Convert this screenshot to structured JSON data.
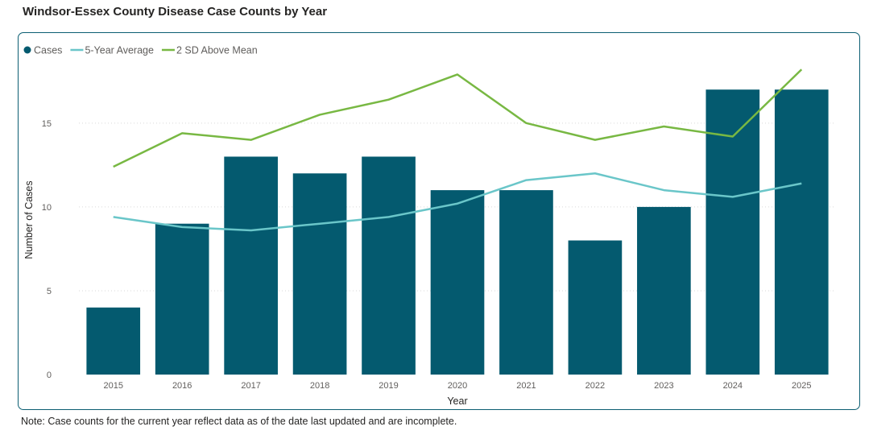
{
  "title": "Windsor-Essex County Disease Case Counts by Year",
  "note": "Note: Case counts for the current year reflect data as of the date last updated and are incomplete.",
  "chart_data": {
    "type": "bar",
    "xlabel": "Year",
    "ylabel": "Number of Cases",
    "ylim": [
      0,
      18.5
    ],
    "yticks": [
      0,
      5,
      10,
      15
    ],
    "grid": true,
    "legend_position": "top-left",
    "categories": [
      "2015",
      "2016",
      "2017",
      "2018",
      "2019",
      "2020",
      "2021",
      "2022",
      "2023",
      "2024",
      "2025"
    ],
    "series": [
      {
        "name": "Cases",
        "kind": "bar",
        "color": "#045a6f",
        "values": [
          4,
          9,
          13,
          12,
          13,
          11,
          11,
          8,
          10,
          17,
          17
        ]
      },
      {
        "name": "5-Year Average",
        "kind": "line",
        "color": "#6ac6c9",
        "values": [
          9.4,
          8.8,
          8.6,
          9.0,
          9.4,
          10.2,
          11.6,
          12.0,
          11.0,
          10.6,
          11.4
        ]
      },
      {
        "name": "2 SD Above Mean",
        "kind": "line",
        "color": "#78b843",
        "values": [
          12.4,
          14.4,
          14.0,
          15.5,
          16.4,
          17.9,
          15.0,
          14.0,
          14.8,
          14.2,
          18.2
        ]
      }
    ]
  }
}
